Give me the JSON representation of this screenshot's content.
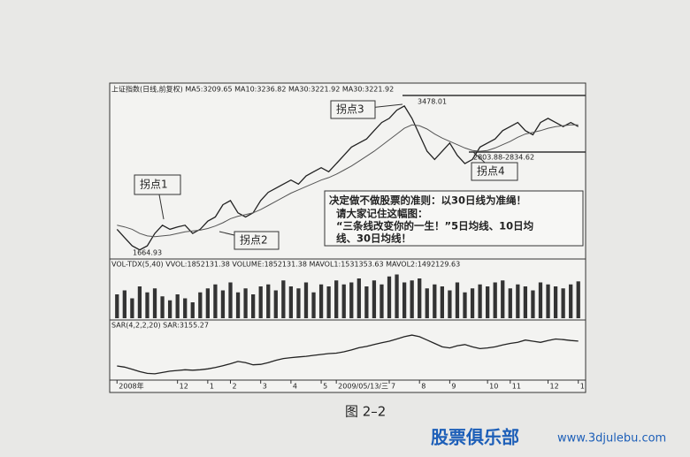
{
  "chart_data": [
    {
      "type": "line",
      "header": "上证指数(日线,前复权) MA5:3209.65 MA10:3236.82 MA30:3221.92 MA30:3221.92",
      "ylim": [
        1600,
        3600
      ],
      "series": [
        {
          "color": "#222222",
          "values": [
            1950,
            1850,
            1750,
            1700,
            1750,
            1900,
            2000,
            1950,
            1980,
            2000,
            1900,
            1950,
            2050,
            2100,
            2250,
            2300,
            2150,
            2100,
            2150,
            2300,
            2400,
            2450,
            2500,
            2550,
            2500,
            2600,
            2650,
            2700,
            2650,
            2750,
            2850,
            2950,
            3000,
            3050,
            3150,
            3250,
            3300,
            3400,
            3450,
            3300,
            3100,
            2900,
            2800,
            2900,
            3000,
            2850,
            2750,
            2800,
            2950,
            3000,
            3050,
            3150,
            3200,
            3250,
            3150,
            3100,
            3250,
            3300,
            3250,
            3200,
            3250,
            3200
          ]
        },
        {
          "color": "#555555",
          "values": [
            2000,
            1980,
            1950,
            1900,
            1870,
            1860,
            1870,
            1880,
            1900,
            1920,
            1930,
            1940,
            1960,
            1990,
            2030,
            2080,
            2110,
            2130,
            2150,
            2190,
            2240,
            2290,
            2340,
            2390,
            2430,
            2470,
            2510,
            2550,
            2580,
            2620,
            2670,
            2720,
            2780,
            2840,
            2900,
            2970,
            3040,
            3110,
            3180,
            3220,
            3210,
            3170,
            3110,
            3060,
            3020,
            2980,
            2940,
            2910,
            2900,
            2910,
            2940,
            2980,
            3020,
            3070,
            3110,
            3130,
            3150,
            3180,
            3200,
            3210,
            3220,
            3222
          ]
        }
      ],
      "annotations": [
        "拐点1",
        "拐点2",
        "拐点3",
        "拐点4",
        "3478.01",
        "1664.93",
        "2803.88-2834.62"
      ],
      "note": [
        "决定做不做股票的准则：以30日线为准绳！",
        "请大家记住这幅图：",
        "“三条线改变你的一生！”5日均线、10日均",
        "线、30日均线！"
      ]
    },
    {
      "type": "bar",
      "header": "VOL-TDX(5,40) VVOL:1852131.38 VOLUME:1852131.38 MAVOL1:1531353.63 MAVOL2:1492129.63",
      "ylim": [
        0,
        2400000
      ],
      "color": "#333333",
      "values": [
        1200000,
        1400000,
        1000000,
        1600000,
        1300000,
        1500000,
        1100000,
        900000,
        1200000,
        1000000,
        800000,
        1300000,
        1500000,
        1700000,
        1400000,
        1800000,
        1300000,
        1500000,
        1200000,
        1600000,
        1700000,
        1400000,
        1900000,
        1600000,
        1500000,
        1800000,
        1300000,
        1700000,
        1600000,
        1900000,
        1700000,
        1800000,
        2000000,
        1600000,
        1900000,
        1700000,
        2100000,
        2200000,
        1800000,
        1900000,
        2000000,
        1500000,
        1700000,
        1600000,
        1400000,
        1800000,
        1300000,
        1500000,
        1700000,
        1600000,
        1800000,
        1900000,
        1500000,
        1700000,
        1600000,
        1400000,
        1800000,
        1700000,
        1600000,
        1500000,
        1700000,
        1852131.38
      ]
    },
    {
      "type": "line",
      "header": "SAR(4,2,2,20) SAR:3155.27",
      "ylim": [
        1500,
        3700
      ],
      "series": [
        {
          "color": "#222222",
          "values": [
            2050,
            2000,
            1900,
            1800,
            1720,
            1700,
            1760,
            1820,
            1850,
            1880,
            1860,
            1880,
            1920,
            1980,
            2060,
            2150,
            2250,
            2200,
            2100,
            2120,
            2200,
            2300,
            2380,
            2420,
            2450,
            2480,
            2520,
            2560,
            2600,
            2620,
            2680,
            2760,
            2860,
            2920,
            3000,
            3080,
            3150,
            3250,
            3350,
            3420,
            3350,
            3200,
            3050,
            2900,
            2850,
            2950,
            3000,
            2900,
            2820,
            2850,
            2900,
            2980,
            3050,
            3100,
            3200,
            3150,
            3100,
            3180,
            3250,
            3220,
            3180,
            3155.27
          ]
        }
      ],
      "xticks": [
        {
          "value": 0,
          "label": "2008年"
        },
        {
          "value": 8,
          "label": "12"
        },
        {
          "value": 12,
          "label": "1"
        },
        {
          "value": 15,
          "label": "2"
        },
        {
          "value": 19,
          "label": "3"
        },
        {
          "value": 23,
          "label": "4"
        },
        {
          "value": 27,
          "label": "5"
        },
        {
          "value": 29,
          "label": "2009/05/13/三"
        },
        {
          "value": 36,
          "label": "7"
        },
        {
          "value": 40,
          "label": "8"
        },
        {
          "value": 44,
          "label": "9"
        },
        {
          "value": 49,
          "label": "10"
        },
        {
          "value": 52,
          "label": "11"
        },
        {
          "value": 57,
          "label": "12"
        },
        {
          "value": 61,
          "label": "1"
        }
      ]
    }
  ],
  "caption": "图 2–2",
  "watermark": {
    "brand": "股票俱乐部",
    "url": "www.3djulebu.com"
  }
}
